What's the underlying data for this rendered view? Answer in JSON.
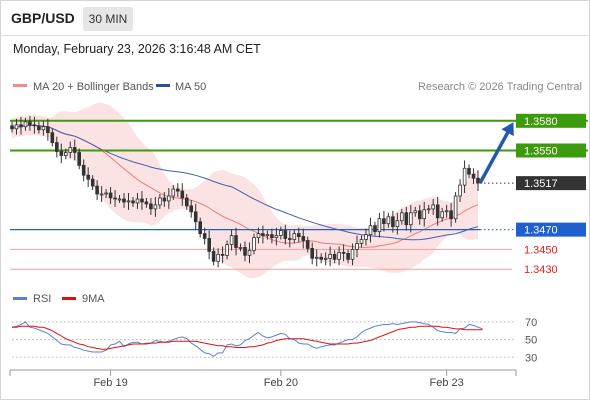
{
  "header": {
    "symbol": "GBP/USD",
    "timeframe": "30 MIN",
    "datetime": "Monday, February 23, 2026 3:16:48 AM CET"
  },
  "legend": {
    "items": [
      {
        "label": "MA 20 + Bollinger Bands",
        "color": "#f08c8c"
      },
      {
        "label": "MA 50",
        "color": "#2c4f9e"
      }
    ],
    "credit": "Research © 2026 Trading Central"
  },
  "rsi_legend": {
    "items": [
      {
        "label": "RSI",
        "color": "#5b7fd6"
      },
      {
        "label": "9MA",
        "color": "#e01010"
      }
    ]
  },
  "colors": {
    "resistance": "#3d9a0c",
    "pivot": "#1f5fcf",
    "support": "#f0a0a0",
    "support_text": "#e02020",
    "last_price": "#333333",
    "candle_up": "#ffffff",
    "candle_down": "#333333",
    "band_fill": "#fbe0e0",
    "ma20": "#f07878",
    "ma50": "#3f5fb0",
    "rsi": "#5b7fd6",
    "rsi_ma": "#e01010",
    "arrow": "#2558a8"
  },
  "chart_data": [
    {
      "type": "candlestick",
      "title": "GBP/USD",
      "timeframe": "30 MIN",
      "x_tick_labels": [
        "Feb 19",
        "Feb 20",
        "Feb 23"
      ],
      "ylim": [
        1.3412,
        1.3598
      ],
      "levels": [
        {
          "value": 1.358,
          "label": "1.3580",
          "kind": "resistance"
        },
        {
          "value": 1.355,
          "label": "1.3550",
          "kind": "resistance"
        },
        {
          "value": 1.3517,
          "label": "1.3517",
          "kind": "last"
        },
        {
          "value": 1.347,
          "label": "1.3470",
          "kind": "pivot"
        },
        {
          "value": 1.345,
          "label": "1.3450",
          "kind": "support"
        },
        {
          "value": 1.343,
          "label": "1.3430",
          "kind": "support"
        }
      ],
      "forecast_arrow": {
        "from": 1.3517,
        "to": 1.358
      },
      "close": [
        1.3572,
        1.3576,
        1.3574,
        1.3579,
        1.3576,
        1.3575,
        1.3571,
        1.3574,
        1.3568,
        1.3558,
        1.3549,
        1.3545,
        1.3548,
        1.3553,
        1.3548,
        1.3535,
        1.3525,
        1.3521,
        1.3514,
        1.3506,
        1.3506,
        1.3507,
        1.3502,
        1.3501,
        1.3501,
        1.3498,
        1.3499,
        1.3497,
        1.3501,
        1.3498,
        1.3496,
        1.3491,
        1.3495,
        1.3502,
        1.3499,
        1.3504,
        1.3511,
        1.3509,
        1.3502,
        1.3494,
        1.3488,
        1.3478,
        1.3466,
        1.3461,
        1.3448,
        1.3438,
        1.3445,
        1.3444,
        1.3455,
        1.3464,
        1.3452,
        1.3452,
        1.3444,
        1.3449,
        1.3462,
        1.3466,
        1.3464,
        1.3465,
        1.3462,
        1.3464,
        1.3469,
        1.3461,
        1.346,
        1.3466,
        1.3463,
        1.3459,
        1.3451,
        1.3441,
        1.3442,
        1.344,
        1.3441,
        1.3445,
        1.344,
        1.3447,
        1.3446,
        1.344,
        1.345,
        1.3456,
        1.346,
        1.3465,
        1.3474,
        1.3468,
        1.3481,
        1.3476,
        1.3483,
        1.3473,
        1.3479,
        1.3487,
        1.3475,
        1.3487,
        1.3489,
        1.3481,
        1.349,
        1.3491,
        1.3495,
        1.3482,
        1.3488,
        1.3489,
        1.3481,
        1.3504,
        1.3515,
        1.3532,
        1.3526,
        1.3522,
        1.3517
      ],
      "rsi": {
        "levels": [
          70,
          50,
          30
        ],
        "ylim": [
          10,
          80
        ],
        "values": [
          64,
          65,
          67,
          70,
          64,
          63,
          61,
          59,
          57,
          53,
          49,
          45,
          44,
          44,
          41,
          40,
          38,
          37,
          36,
          36,
          36,
          38,
          44,
          45,
          48,
          42,
          45,
          47,
          47,
          45,
          46,
          46,
          49,
          48,
          47,
          48,
          50,
          52,
          53,
          51,
          46,
          43,
          39,
          35,
          34,
          31,
          35,
          35,
          44,
          45,
          43,
          44,
          49,
          51,
          55,
          58,
          54,
          52,
          53,
          55,
          57,
          56,
          51,
          50,
          46,
          45,
          45,
          42,
          40,
          42,
          43,
          44,
          44,
          46,
          48,
          50,
          50,
          53,
          58,
          61,
          63,
          65,
          66,
          67,
          67,
          68,
          67,
          68,
          69,
          70,
          70,
          69,
          68,
          67,
          64,
          60,
          59,
          58,
          58,
          57,
          62,
          63,
          67,
          66,
          64,
          62
        ],
        "ma_values": [
          64,
          64,
          65,
          65,
          65,
          65,
          64,
          64,
          62,
          60,
          57,
          54,
          51,
          49,
          47,
          45,
          44,
          42,
          41,
          40,
          39,
          39,
          40,
          41,
          42,
          43,
          44,
          45,
          45,
          45,
          45,
          46,
          46,
          47,
          47,
          47,
          48,
          48,
          48,
          48,
          48,
          48,
          47,
          46,
          45,
          44,
          43,
          43,
          42,
          42,
          41,
          41,
          41,
          42,
          42,
          43,
          44,
          46,
          47,
          49,
          50,
          51,
          51,
          51,
          51,
          51,
          50,
          49,
          48,
          47,
          46,
          45,
          45,
          45,
          45,
          45,
          46,
          46,
          47,
          48,
          49,
          51,
          53,
          55,
          57,
          59,
          61,
          62,
          63,
          64,
          64,
          65,
          65,
          65,
          65,
          65,
          64,
          64,
          63,
          62,
          62,
          61,
          61,
          61,
          61,
          61
        ]
      }
    }
  ]
}
